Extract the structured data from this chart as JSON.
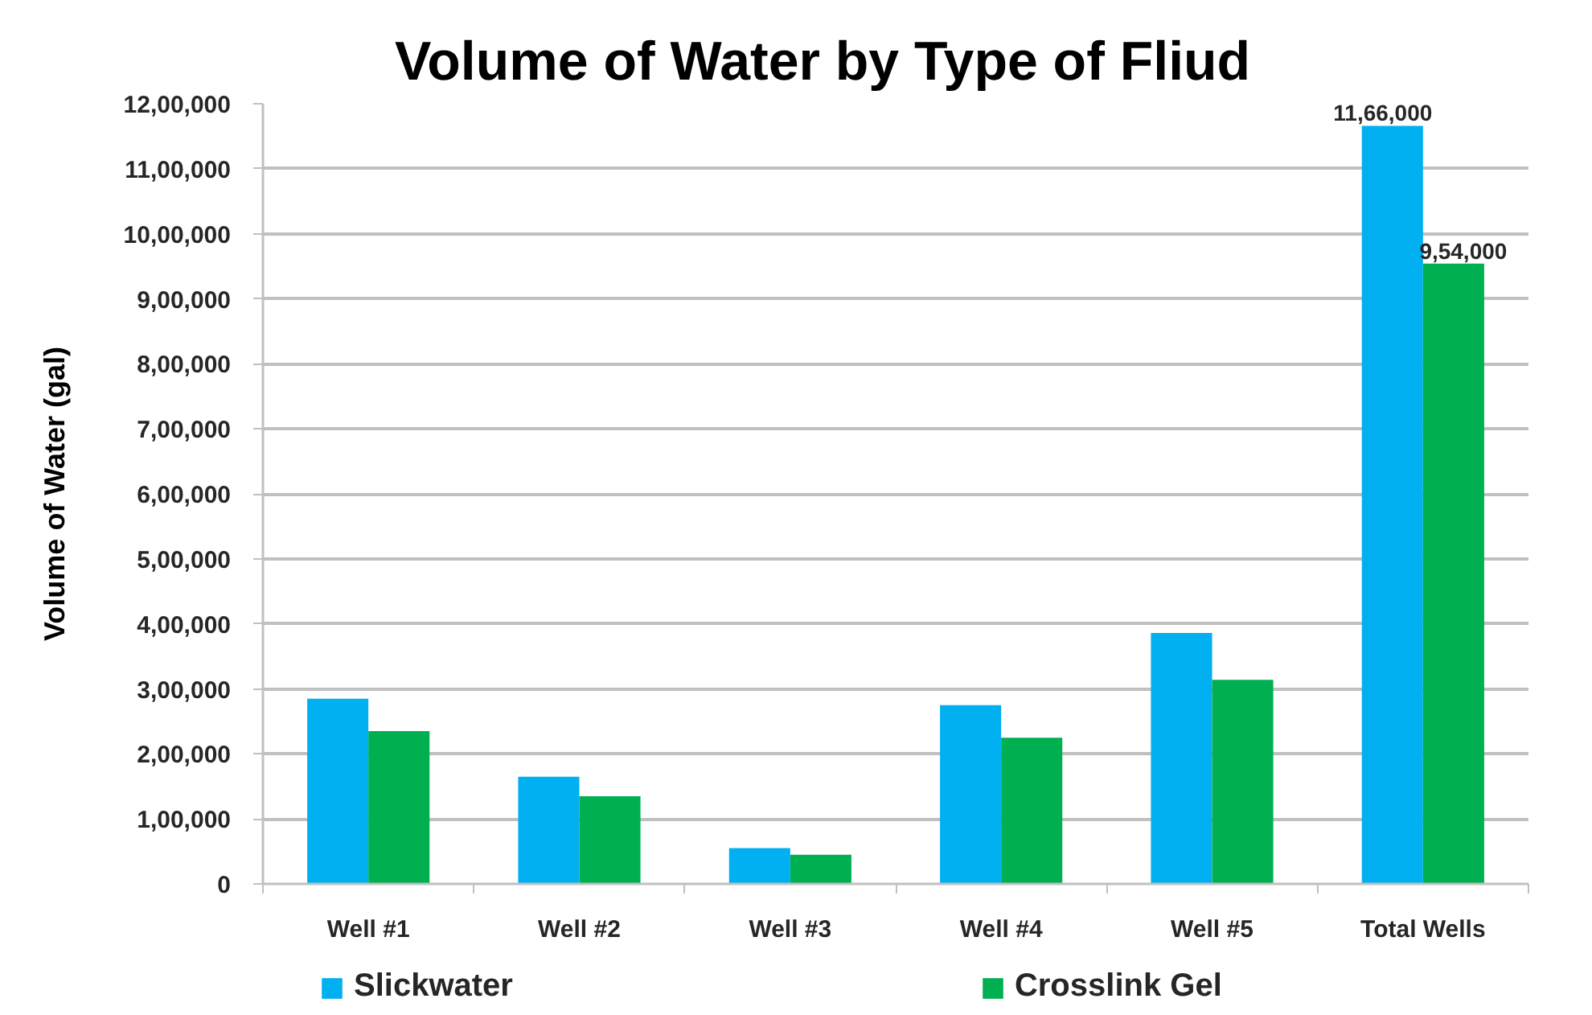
{
  "chart_data": {
    "type": "bar",
    "title": "Volume of Water by Type of Fliud",
    "ylabel": "Volume of Water (gal)",
    "categories": [
      "Well #1",
      "Well #2",
      "Well #3",
      "Well #4",
      "Well #5",
      "Total Wells"
    ],
    "series": [
      {
        "name": "Slickwater",
        "color": "#00b0f0",
        "values": [
          285000,
          165000,
          55000,
          275000,
          386000,
          1166000
        ],
        "value_labels": [
          null,
          null,
          null,
          null,
          null,
          "11,66,000"
        ]
      },
      {
        "name": "Crosslink Gel",
        "color": "#00b050",
        "values": [
          235000,
          135000,
          45000,
          225000,
          314000,
          954000
        ],
        "value_labels": [
          null,
          null,
          null,
          null,
          null,
          "9,54,000"
        ]
      }
    ],
    "ylim": [
      0,
      1200000
    ],
    "yticks": [
      0,
      {
        "value": 100000,
        "label": "1,00,000"
      },
      {
        "value": 200000,
        "label": "2,00,000"
      },
      {
        "value": 300000,
        "label": "3,00,000"
      },
      {
        "value": 400000,
        "label": "4,00,000"
      },
      {
        "value": 500000,
        "label": "5,00,000"
      },
      {
        "value": 600000,
        "label": "6,00,000"
      },
      {
        "value": 700000,
        "label": "7,00,000"
      },
      {
        "value": 800000,
        "label": "8,00,000"
      },
      {
        "value": 900000,
        "label": "9,00,000"
      },
      {
        "value": 1000000,
        "label": "10,00,000"
      },
      {
        "value": 1100000,
        "label": "11,00,000"
      },
      {
        "value": 1200000,
        "label": "12,00,000"
      }
    ],
    "grid": "y",
    "legend": "bottom"
  }
}
